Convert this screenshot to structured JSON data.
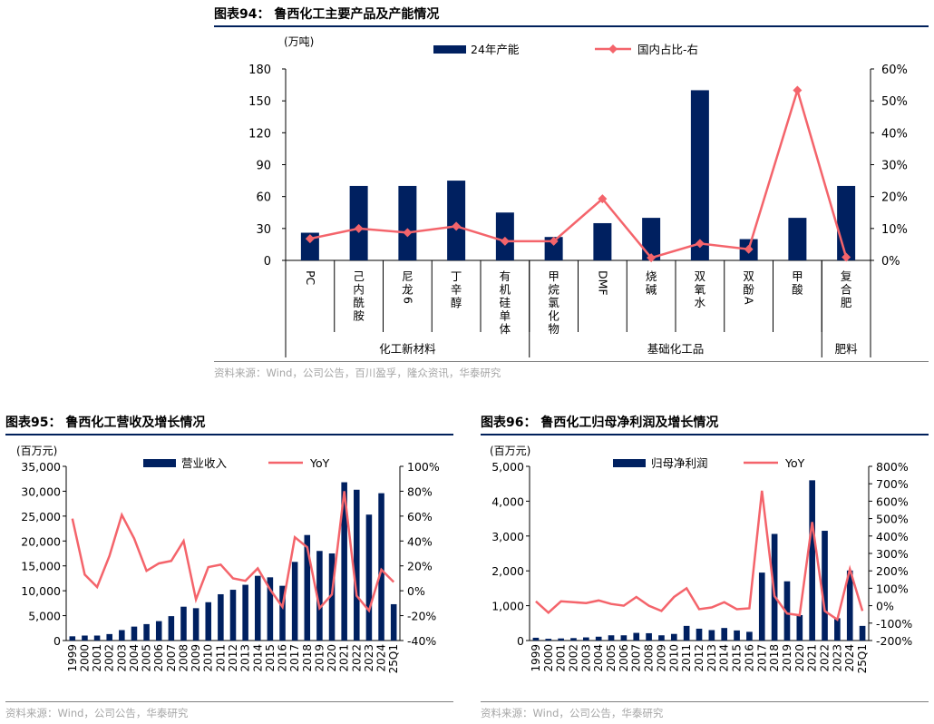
{
  "colors": {
    "bar": "#002060",
    "line": "#f4646b",
    "axis": "#000000",
    "source": "#a6a6a6",
    "rule": "#00205b"
  },
  "chart_data": [
    {
      "id": "c94",
      "type": "bar",
      "title": "图表94：  鲁西化工主要产品及产能情况",
      "unit_left": "(万吨)",
      "legend_position": "top-center",
      "categories": [
        "PC",
        "己内酰胺",
        "尼龙6",
        "丁辛醇",
        "有机硅单体",
        "甲烷氯化物",
        "DMF",
        "烧碱",
        "双氧水",
        "双酚A",
        "甲酸",
        "复合肥"
      ],
      "groups": [
        {
          "label": "化工新材料",
          "categories": [
            "PC",
            "己内酰胺",
            "尼龙6",
            "丁辛醇",
            "有机硅单体"
          ]
        },
        {
          "label": "基础化工品",
          "categories": [
            "甲烷氯化物",
            "DMF",
            "烧碱",
            "双氧水",
            "双酚A",
            "甲酸"
          ]
        },
        {
          "label": "肥料",
          "categories": [
            "复合肥"
          ]
        }
      ],
      "series": [
        {
          "name": "24年产能",
          "type": "bar",
          "axis": "left",
          "values": [
            26,
            70,
            70,
            75,
            45,
            22,
            35,
            40,
            160,
            20,
            40,
            70
          ]
        },
        {
          "name": "国内占比-右",
          "type": "line",
          "axis": "right",
          "values": [
            6.8,
            10.0,
            8.7,
            10.7,
            6.0,
            6.0,
            19.3,
            0.8,
            5.3,
            3.5,
            53.3,
            1.0
          ]
        }
      ],
      "y_left": {
        "min": 0,
        "max": 180,
        "ticks": [
          "0",
          "30",
          "60",
          "90",
          "120",
          "150",
          "180"
        ]
      },
      "y_right": {
        "min": 0,
        "max": 60,
        "ticks": [
          "0%",
          "10%",
          "20%",
          "30%",
          "40%",
          "50%",
          "60%"
        ]
      },
      "source": "资料来源：Wind，公司公告，百川盈孚，隆众资讯，华泰研究"
    },
    {
      "id": "c95",
      "type": "bar",
      "title": "图表95：  鲁西化工营收及增长情况",
      "unit_left": "(百万元)",
      "legend_position": "top-center",
      "categories": [
        "1999",
        "2000",
        "2001",
        "2002",
        "2003",
        "2004",
        "2005",
        "2006",
        "2007",
        "2008",
        "2009",
        "2010",
        "2011",
        "2012",
        "2013",
        "2014",
        "2015",
        "2016",
        "2017",
        "2018",
        "2019",
        "2020",
        "2021",
        "2022",
        "2023",
        "2024",
        "25Q1"
      ],
      "series": [
        {
          "name": "营业收入",
          "type": "bar",
          "axis": "left",
          "values": [
            850,
            1000,
            1000,
            1300,
            2100,
            2800,
            3300,
            3900,
            4900,
            6800,
            6500,
            7700,
            9300,
            10200,
            11200,
            13000,
            12700,
            11000,
            15800,
            21200,
            18000,
            17500,
            31800,
            30300,
            25300,
            29600,
            7300
          ]
        },
        {
          "name": "YoY",
          "type": "line",
          "axis": "right",
          "values": [
            58,
            13,
            3,
            28,
            61,
            42,
            16,
            22,
            24,
            40,
            -7,
            19,
            21,
            10,
            8,
            18,
            1,
            -13,
            43,
            35,
            -14,
            -3,
            80,
            -4,
            -16,
            17,
            7
          ]
        }
      ],
      "y_left": {
        "min": 0,
        "max": 35000,
        "ticks": [
          "0",
          "5,000",
          "10,000",
          "15,000",
          "20,000",
          "25,000",
          "30,000",
          "35,000"
        ]
      },
      "y_right": {
        "min": -40,
        "max": 100,
        "ticks": [
          "-40%",
          "-20%",
          "0%",
          "20%",
          "40%",
          "60%",
          "80%",
          "100%"
        ]
      },
      "source": "资料来源：Wind，公司公告，华泰研究"
    },
    {
      "id": "c96",
      "type": "bar",
      "title": "图表96：  鲁西化工归母净利润及增长情况",
      "unit_left": "(百万元)",
      "legend_position": "top-center",
      "categories": [
        "1999",
        "2000",
        "2001",
        "2002",
        "2003",
        "2004",
        "2005",
        "2006",
        "2007",
        "2008",
        "2009",
        "2010",
        "2011",
        "2012",
        "2013",
        "2014",
        "2015",
        "2016",
        "2017",
        "2018",
        "2019",
        "2020",
        "2021",
        "2022",
        "2023",
        "2024",
        "25Q1"
      ],
      "series": [
        {
          "name": "归母净利润",
          "type": "bar",
          "axis": "left",
          "values": [
            80,
            50,
            60,
            70,
            90,
            110,
            150,
            150,
            220,
            210,
            150,
            190,
            420,
            340,
            300,
            360,
            290,
            250,
            1950,
            3060,
            1700,
            730,
            4600,
            3150,
            640,
            2010,
            420
          ]
        },
        {
          "name": "YoY",
          "type": "line",
          "axis": "right",
          "values": [
            25,
            -40,
            25,
            20,
            15,
            30,
            10,
            0,
            50,
            0,
            -30,
            50,
            100,
            -20,
            -10,
            20,
            -20,
            -15,
            660,
            55,
            -45,
            -55,
            480,
            -30,
            -80,
            210,
            -30
          ]
        }
      ],
      "y_left": {
        "min": 0,
        "max": 5000,
        "ticks": [
          "0",
          "1,000",
          "2,000",
          "3,000",
          "4,000",
          "5,000"
        ]
      },
      "y_right": {
        "min": -200,
        "max": 800,
        "ticks": [
          "-200%",
          "-100%",
          "0%",
          "100%",
          "200%",
          "300%",
          "400%",
          "500%",
          "600%",
          "700%",
          "800%"
        ]
      },
      "source": "资料来源：Wind，公司公告，华泰研究"
    }
  ]
}
